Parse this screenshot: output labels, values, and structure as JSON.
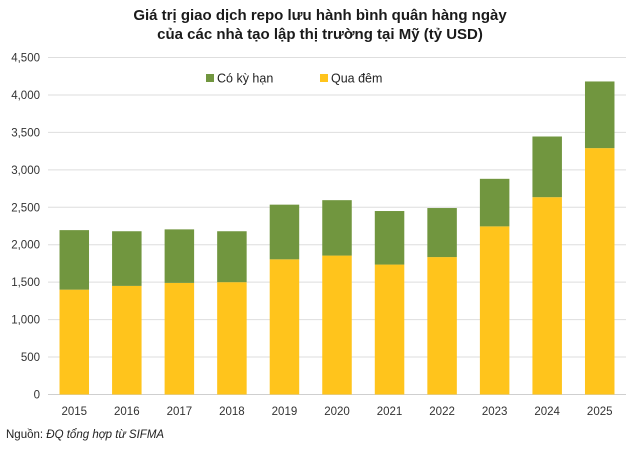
{
  "chart_data": {
    "type": "bar",
    "stacked": true,
    "title": "Giá trị giao dịch repo lưu hành bình quân hàng ngày của các nhà tạo lập thị trường tại Mỹ (tỷ USD)",
    "title_lines": [
      "Giá trị giao dịch repo lưu hành bình quân hàng ngày",
      "của các nhà tạo lập thị trường tại Mỹ (tỷ USD)"
    ],
    "xlabel": "",
    "ylabel": "",
    "categories": [
      "2015",
      "2016",
      "2017",
      "2018",
      "2019",
      "2020",
      "2021",
      "2022",
      "2023",
      "2024",
      "2025"
    ],
    "series": [
      {
        "name": "Qua đêm",
        "color": "#FFC41C",
        "values": [
          1400,
          1450,
          1490,
          1500,
          1805,
          1855,
          1735,
          1835,
          2245,
          2635,
          3290
        ]
      },
      {
        "name": "Có kỳ hạn",
        "color": "#71963F",
        "values": [
          795,
          730,
          715,
          680,
          730,
          740,
          715,
          655,
          635,
          810,
          890
        ]
      }
    ],
    "legend_order": [
      "Có kỳ hạn",
      "Qua đêm"
    ],
    "legend_position": "top",
    "ylim": [
      0,
      4500
    ],
    "yticks": [
      0,
      500,
      1000,
      1500,
      2000,
      2500,
      3000,
      3500,
      4000,
      4500
    ],
    "ytick_labels": [
      "0",
      "500",
      "1,000",
      "1,500",
      "2,000",
      "2,500",
      "3,000",
      "3,500",
      "4,000",
      "4,500"
    ],
    "grid": true
  },
  "source": {
    "label": "Nguồn:",
    "text": "ĐQ tổng hợp từ SIFMA"
  }
}
